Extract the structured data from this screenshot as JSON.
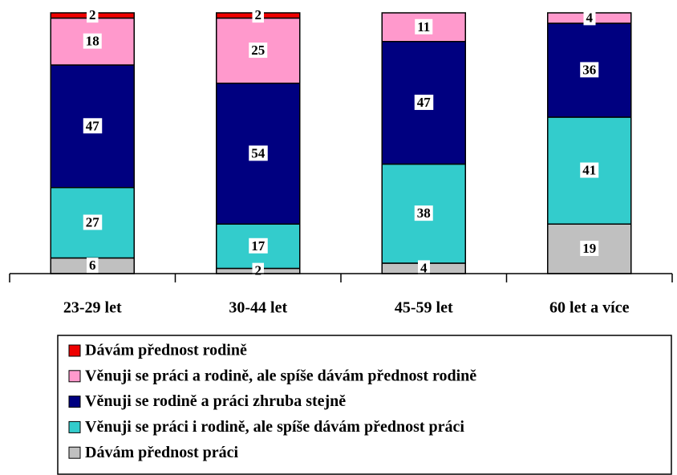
{
  "chart_data": {
    "type": "stacked_bar",
    "categories": [
      "23-29 let",
      "30-44 let",
      "45-59 let",
      "60 let a více"
    ],
    "series": [
      {
        "name": "Dávám přednost rodině",
        "color": "#ee0000",
        "values": [
          2,
          2,
          null,
          null
        ]
      },
      {
        "name": "Věnuji se práci a rodině, ale spíše dávám přednost rodině",
        "color": "#ff99cc",
        "values": [
          18,
          25,
          11,
          4
        ]
      },
      {
        "name": "Věnuji se rodině a práci zhruba stejně",
        "color": "#000080",
        "values": [
          47,
          54,
          47,
          36
        ]
      },
      {
        "name": "Věnuji se práci i rodině, ale spíše dávám přednost práci",
        "color": "#33cccc",
        "values": [
          27,
          17,
          38,
          41
        ]
      },
      {
        "name": "Dávám přednost práci",
        "color": "#c0c0c0",
        "values": [
          6,
          2,
          4,
          19
        ]
      }
    ],
    "ylim": [
      0,
      100
    ]
  }
}
